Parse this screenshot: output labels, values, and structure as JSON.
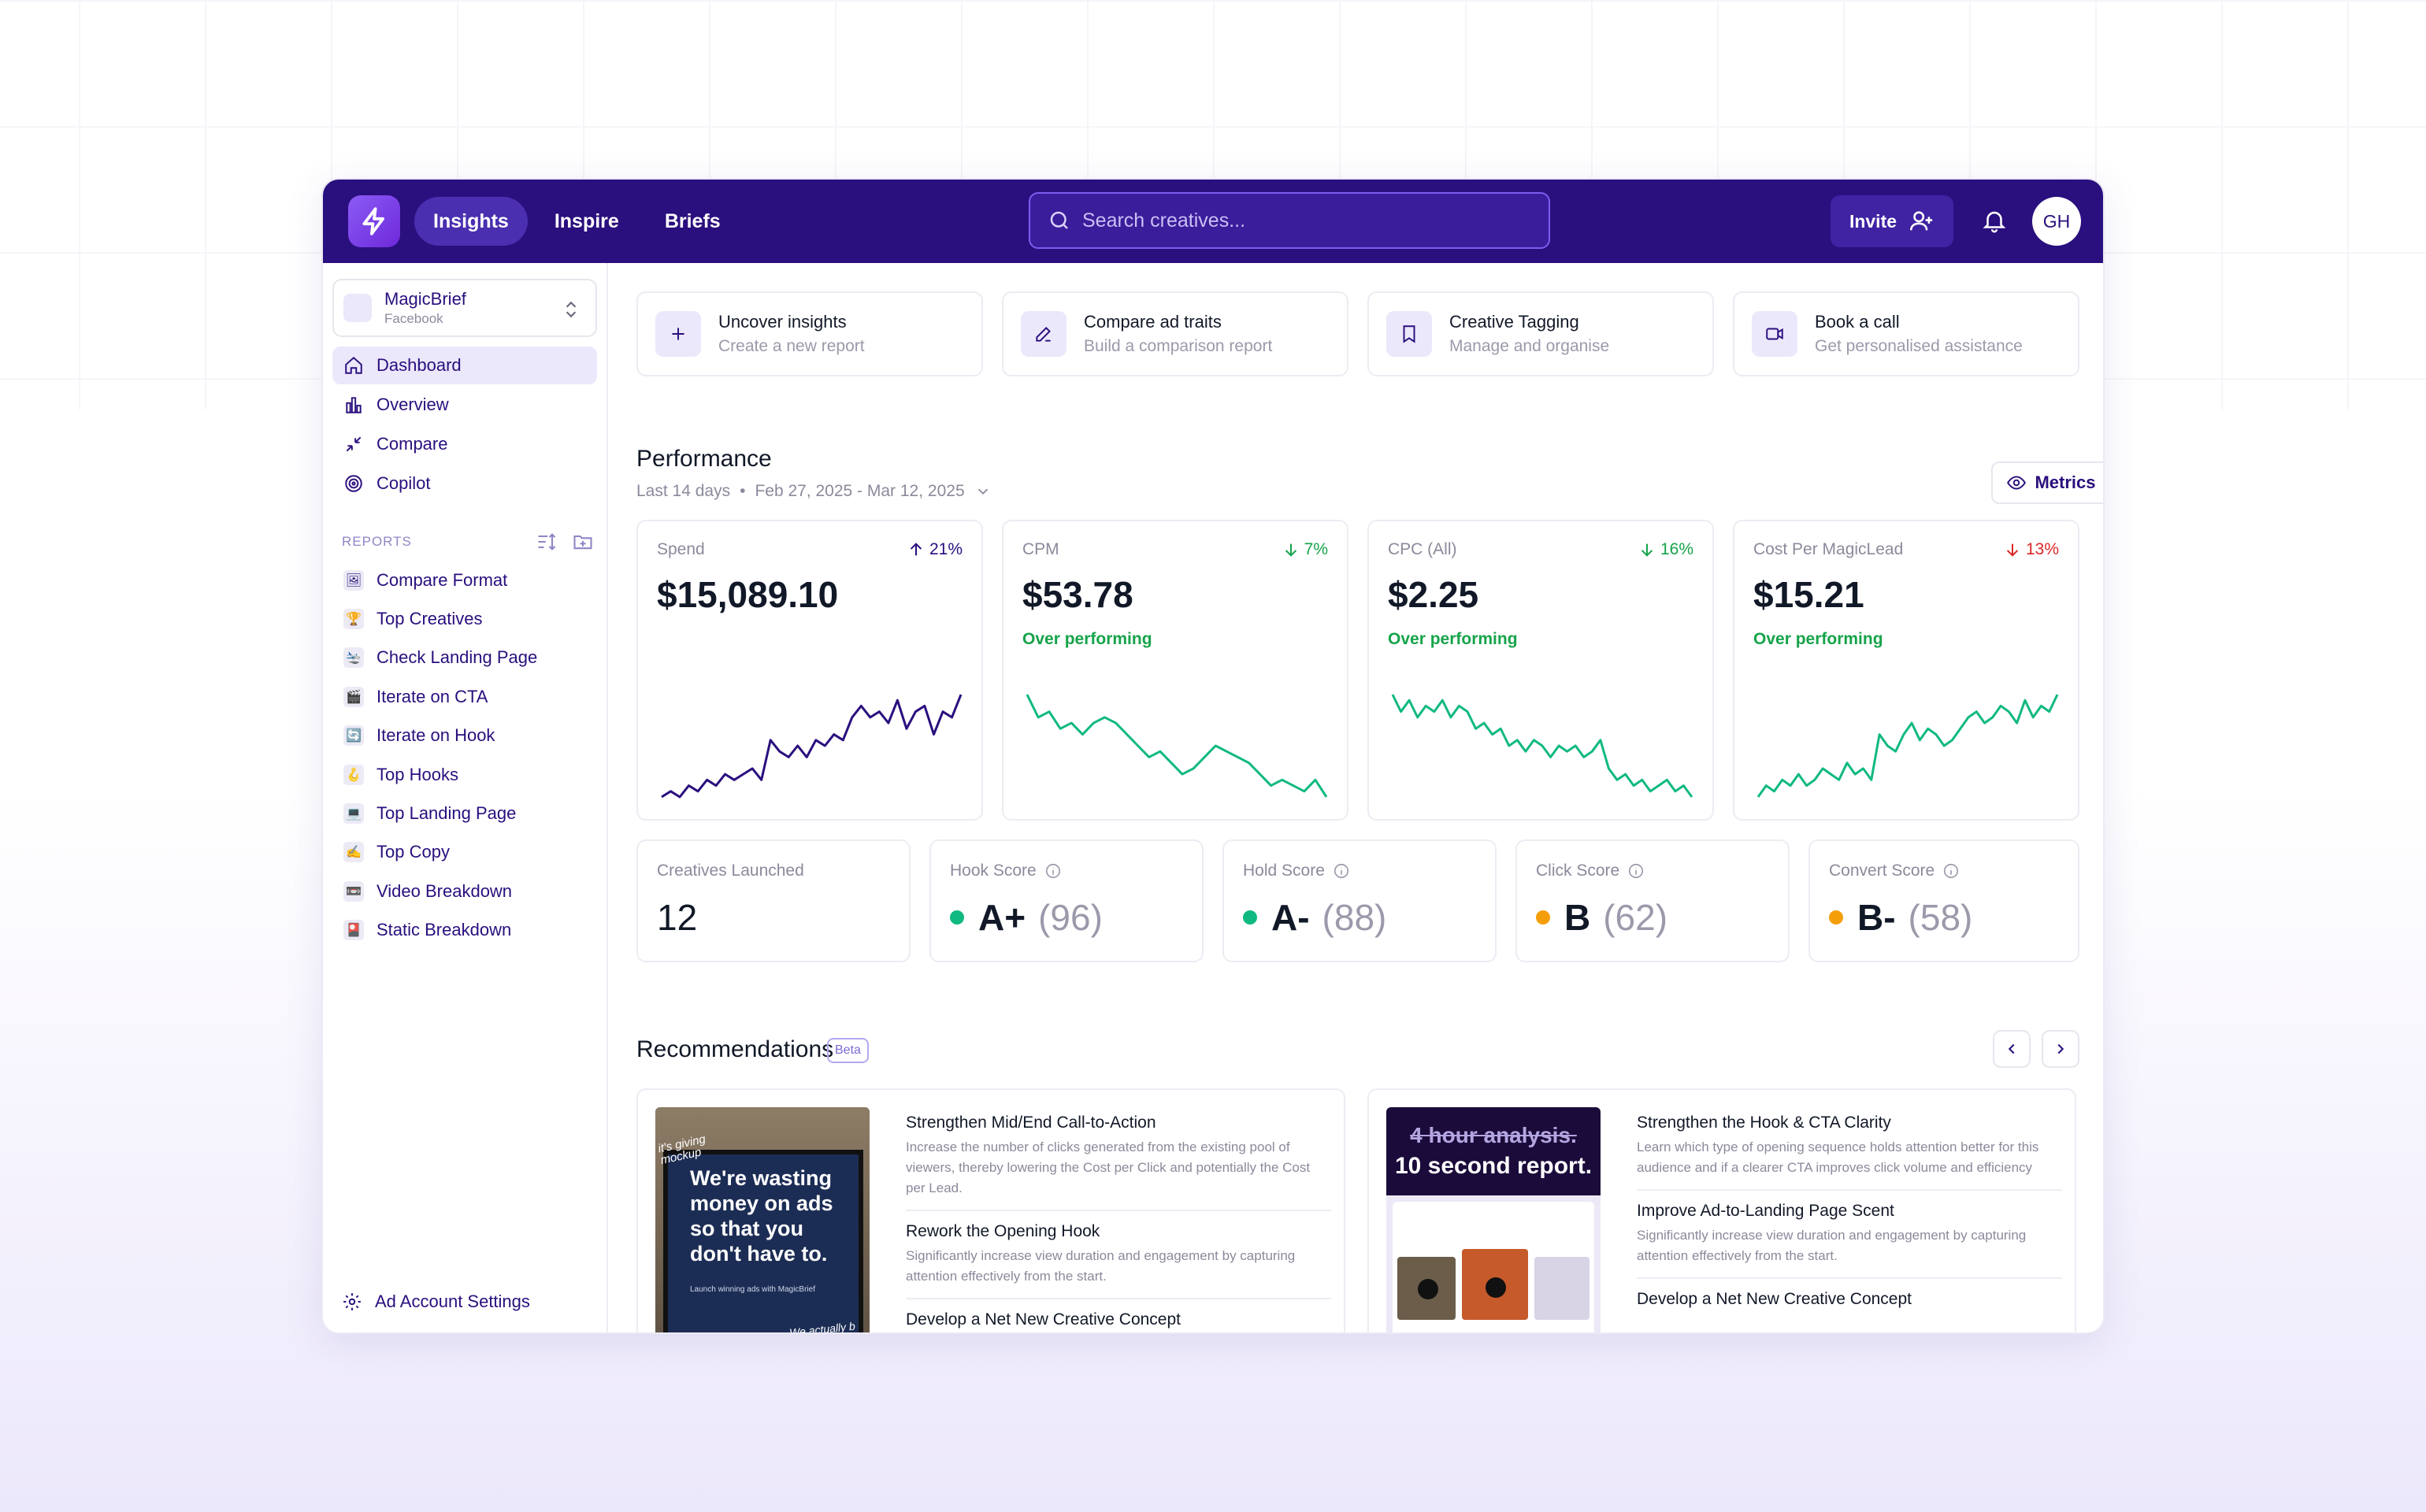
{
  "colors": {
    "brand": "#2a0f7e",
    "accent": "#8b5cf6",
    "positive": "#16a34a",
    "negative": "#dc2626",
    "grade_green": "#10b981",
    "grade_orange": "#f59e0b"
  },
  "topbar": {
    "nav": [
      {
        "label": "Insights",
        "active": true
      },
      {
        "label": "Inspire"
      },
      {
        "label": "Briefs"
      }
    ],
    "search_placeholder": "Search creatives...",
    "invite_label": "Invite",
    "avatar_initials": "GH"
  },
  "sidebar": {
    "account": {
      "name": "MagicBrief",
      "platform": "Facebook"
    },
    "menu": [
      {
        "label": "Dashboard",
        "icon": "home-icon",
        "active": true
      },
      {
        "label": "Overview",
        "icon": "chart-bars-icon"
      },
      {
        "label": "Compare",
        "icon": "compare-arrows-icon"
      },
      {
        "label": "Copilot",
        "icon": "target-icon"
      }
    ],
    "reports_heading": "REPORTS",
    "reports": [
      {
        "label": "Compare Format",
        "emoji": "🖼"
      },
      {
        "label": "Top Creatives",
        "emoji": "🏆"
      },
      {
        "label": "Check Landing Page",
        "emoji": "🛬"
      },
      {
        "label": "Iterate on CTA",
        "emoji": "🎬"
      },
      {
        "label": "Iterate on Hook",
        "emoji": "🔄"
      },
      {
        "label": "Top Hooks",
        "emoji": "🪝"
      },
      {
        "label": "Top Landing Page",
        "emoji": "💻"
      },
      {
        "label": "Top Copy",
        "emoji": "✍"
      },
      {
        "label": "Video Breakdown",
        "emoji": "📼"
      },
      {
        "label": "Static Breakdown",
        "emoji": "🎴"
      }
    ],
    "settings_label": "Ad Account Settings"
  },
  "quick_actions": [
    {
      "title": "Uncover insights",
      "subtitle": "Create a new report",
      "icon": "plus-icon"
    },
    {
      "title": "Compare ad traits",
      "subtitle": "Build a comparison report",
      "icon": "pencil-icon"
    },
    {
      "title": "Creative Tagging",
      "subtitle": "Manage and organise",
      "icon": "bookmark-icon"
    },
    {
      "title": "Book a call",
      "subtitle": "Get personalised assistance",
      "icon": "video-icon"
    }
  ],
  "performance": {
    "title": "Performance",
    "range_label": "Last 14 days",
    "dates": "Feb 27, 2025 - Mar 12, 2025",
    "metrics_button": "Metrics",
    "cards": [
      {
        "label": "Spend",
        "delta": "21%",
        "direction": "up",
        "value": "$15,089.10",
        "status": "",
        "line_color": "#2a0f7e",
        "trend": [
          2,
          3,
          2,
          4,
          3,
          5,
          4,
          6,
          5,
          6,
          7,
          5,
          12,
          10,
          9,
          11,
          9,
          12,
          11,
          13,
          12,
          16,
          18,
          16,
          17,
          15,
          19,
          14,
          17,
          18,
          13,
          17,
          16,
          20
        ]
      },
      {
        "label": "CPM",
        "delta": "7%",
        "direction": "down",
        "value": "$53.78",
        "status": "Over performing",
        "line_color": "#10b981",
        "trend": [
          18,
          14,
          15,
          12,
          13,
          11,
          13,
          14,
          13,
          11,
          9,
          7,
          8,
          6,
          4,
          5,
          7,
          9,
          8,
          7,
          6,
          4,
          2,
          3,
          2,
          1,
          3,
          0
        ]
      },
      {
        "label": "CPC (All)",
        "delta": "16%",
        "direction": "down",
        "value": "$2.25",
        "status": "Over performing",
        "line_color": "#10b981",
        "trend": [
          18,
          15,
          17,
          14,
          16,
          15,
          17,
          14,
          16,
          15,
          12,
          13,
          11,
          12,
          9,
          10,
          8,
          10,
          9,
          7,
          9,
          8,
          9,
          7,
          8,
          10,
          5,
          3,
          4,
          2,
          3,
          1,
          2,
          3,
          1,
          2,
          0
        ]
      },
      {
        "label": "Cost Per MagicLead",
        "delta": "13%",
        "direction": "down_negative",
        "value": "$15.21",
        "status": "Over performing",
        "line_color": "#10b981",
        "trend": [
          1,
          3,
          2,
          4,
          3,
          5,
          3,
          4,
          6,
          5,
          4,
          7,
          5,
          6,
          4,
          12,
          10,
          9,
          12,
          14,
          11,
          13,
          12,
          10,
          11,
          13,
          15,
          16,
          14,
          15,
          17,
          16,
          14,
          18,
          15,
          17,
          16,
          19
        ]
      }
    ]
  },
  "scores": {
    "creatives_launched": {
      "label": "Creatives Launched",
      "value": "12"
    },
    "items": [
      {
        "label": "Hook Score",
        "grade": "A+",
        "value": "(96)",
        "color": "#10b981"
      },
      {
        "label": "Hold Score",
        "grade": "A-",
        "value": "(88)",
        "color": "#10b981"
      },
      {
        "label": "Click Score",
        "grade": "B",
        "value": "(62)",
        "color": "#f59e0b"
      },
      {
        "label": "Convert Score",
        "grade": "B-",
        "value": "(58)",
        "color": "#f59e0b"
      }
    ]
  },
  "recommendations": {
    "title": "Recommendations",
    "badge": "Beta",
    "cards": [
      {
        "image": {
          "handwriting": "it's giving mockup",
          "headline": "We're wasting money on ads so that you don't have to.",
          "tagline": "Launch winning ads with MagicBrief",
          "corner": "We actually b"
        },
        "items": [
          {
            "title": "Strengthen Mid/End Call-to-Action",
            "desc": "Increase the number of clicks generated from the existing pool of viewers, thereby lowering the Cost per Click and potentially the Cost per Lead."
          },
          {
            "title": "Rework the Opening Hook",
            "desc": "Significantly increase view duration and engagement by capturing attention effectively from the start."
          },
          {
            "title": "Develop a Net New Creative Concept",
            "desc": ""
          }
        ]
      },
      {
        "image": {
          "line1": "4 hour analysis.",
          "line2": "10 second report."
        },
        "items": [
          {
            "title": "Strengthen the Hook & CTA Clarity",
            "desc": "Learn which type of opening sequence holds attention better for this audience and if a clearer CTA improves click volume and efficiency"
          },
          {
            "title": "Improve Ad-to-Landing Page Scent",
            "desc": "Significantly increase view duration and engagement by capturing attention effectively from the start."
          },
          {
            "title": "Develop a Net New Creative Concept",
            "desc": ""
          }
        ]
      }
    ]
  }
}
